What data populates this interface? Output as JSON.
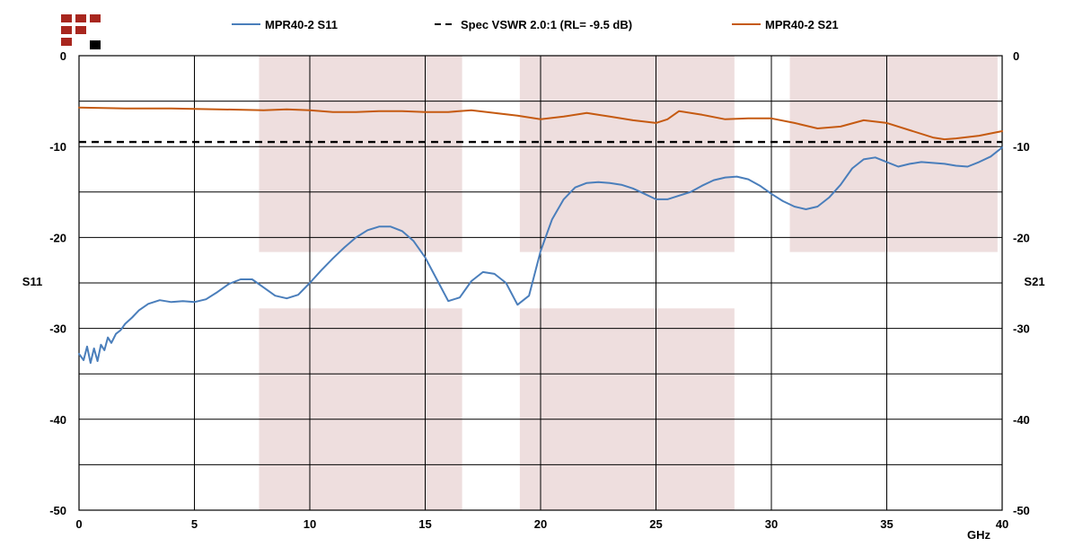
{
  "chart_data": {
    "type": "line",
    "x_unit": "GHz",
    "xlim": [
      0,
      40
    ],
    "x_ticks": [
      "0",
      "5",
      "10",
      "15",
      "20",
      "25",
      "30",
      "35",
      "40"
    ],
    "y_left_label": "S11",
    "y_right_label": "S21",
    "ylim": [
      -50,
      0
    ],
    "y_ticks": [
      "0",
      "-10",
      "-20",
      "-30",
      "-40",
      "-50"
    ],
    "gridlines": true,
    "legend_position": "top",
    "shaded_bands": [
      {
        "x": [
          7.8,
          16.6
        ],
        "y": [
          -21.6,
          0
        ]
      },
      {
        "x": [
          7.8,
          16.6
        ],
        "y": [
          -50,
          -27.8
        ]
      },
      {
        "x": [
          19.1,
          28.4
        ],
        "y": [
          -21.6,
          0
        ]
      },
      {
        "x": [
          19.1,
          28.4
        ],
        "y": [
          -50,
          -27.8
        ]
      },
      {
        "x": [
          30.8,
          39.8
        ],
        "y": [
          -21.6,
          0
        ]
      }
    ],
    "series": [
      {
        "name": "MPR40-2 S11",
        "color": "#4a7ebb",
        "dash": "solid",
        "x": [
          0,
          0.2,
          0.35,
          0.5,
          0.65,
          0.8,
          0.95,
          1.1,
          1.25,
          1.4,
          1.6,
          1.8,
          2.0,
          2.3,
          2.6,
          3.0,
          3.5,
          4.0,
          4.5,
          5.0,
          5.5,
          6.0,
          6.5,
          7.0,
          7.5,
          8.0,
          8.5,
          9.0,
          9.5,
          10.0,
          10.5,
          11.0,
          11.5,
          12.0,
          12.5,
          13.0,
          13.5,
          14.0,
          14.5,
          15.0,
          15.5,
          16.0,
          16.5,
          17.0,
          17.5,
          18.0,
          18.5,
          19.0,
          19.5,
          20.0,
          20.5,
          21.0,
          21.5,
          22.0,
          22.5,
          23.0,
          23.5,
          24.0,
          24.5,
          25.0,
          25.5,
          26.0,
          26.5,
          27.0,
          27.5,
          28.0,
          28.5,
          29.0,
          29.5,
          30.0,
          30.5,
          31.0,
          31.5,
          32.0,
          32.5,
          33.0,
          33.5,
          34.0,
          34.5,
          35.0,
          35.5,
          36.0,
          36.5,
          37.0,
          37.5,
          38.0,
          38.5,
          39.0,
          39.5,
          40.0
        ],
        "y": [
          -32.8,
          -33.5,
          -32.0,
          -33.8,
          -32.2,
          -33.6,
          -31.8,
          -32.4,
          -31.0,
          -31.6,
          -30.6,
          -30.2,
          -29.5,
          -28.8,
          -28.0,
          -27.3,
          -26.9,
          -27.1,
          -27.0,
          -27.1,
          -26.8,
          -26.0,
          -25.1,
          -24.6,
          -24.6,
          -25.5,
          -26.4,
          -26.7,
          -26.3,
          -25.0,
          -23.6,
          -22.3,
          -21.1,
          -20.0,
          -19.2,
          -18.8,
          -18.8,
          -19.3,
          -20.4,
          -22.2,
          -24.6,
          -27.0,
          -26.6,
          -24.8,
          -23.8,
          -24.0,
          -25.0,
          -27.4,
          -26.4,
          -21.5,
          -18.0,
          -15.8,
          -14.5,
          -14.0,
          -13.9,
          -14.0,
          -14.2,
          -14.6,
          -15.2,
          -15.8,
          -15.8,
          -15.4,
          -15.0,
          -14.3,
          -13.7,
          -13.4,
          -13.3,
          -13.6,
          -14.3,
          -15.2,
          -16.0,
          -16.6,
          -16.9,
          -16.6,
          -15.6,
          -14.2,
          -12.4,
          -11.4,
          -11.2,
          -11.7,
          -12.2,
          -11.9,
          -11.7,
          -11.8,
          -11.9,
          -12.1,
          -12.2,
          -11.7,
          -11.1,
          -10.1
        ]
      },
      {
        "name": "Spec VSWR 2.0:1 (RL= -9.5 dB)",
        "color": "#000000",
        "dash": "dashed",
        "x": [
          0,
          40
        ],
        "y": [
          -9.5,
          -9.5
        ]
      },
      {
        "name": "MPR40-2 S21",
        "color": "#c55a11",
        "dash": "solid",
        "x": [
          0,
          2,
          4,
          6,
          8,
          9,
          10,
          11,
          12,
          13,
          14,
          15,
          16,
          17,
          18,
          19,
          20,
          21,
          22,
          23,
          24,
          25,
          25.5,
          26,
          27,
          28,
          29,
          30,
          31,
          32,
          33,
          34,
          35,
          36,
          37,
          37.5,
          38,
          39,
          40
        ],
        "y": [
          -5.7,
          -5.8,
          -5.8,
          -5.9,
          -6.0,
          -5.9,
          -6.0,
          -6.2,
          -6.2,
          -6.1,
          -6.1,
          -6.2,
          -6.2,
          -6.0,
          -6.3,
          -6.6,
          -7.0,
          -6.7,
          -6.3,
          -6.7,
          -7.1,
          -7.4,
          -7.0,
          -6.1,
          -6.5,
          -7.0,
          -6.9,
          -6.9,
          -7.4,
          -8.0,
          -7.8,
          -7.1,
          -7.4,
          -8.2,
          -9.0,
          -9.2,
          -9.1,
          -8.8,
          -8.3
        ]
      }
    ]
  }
}
